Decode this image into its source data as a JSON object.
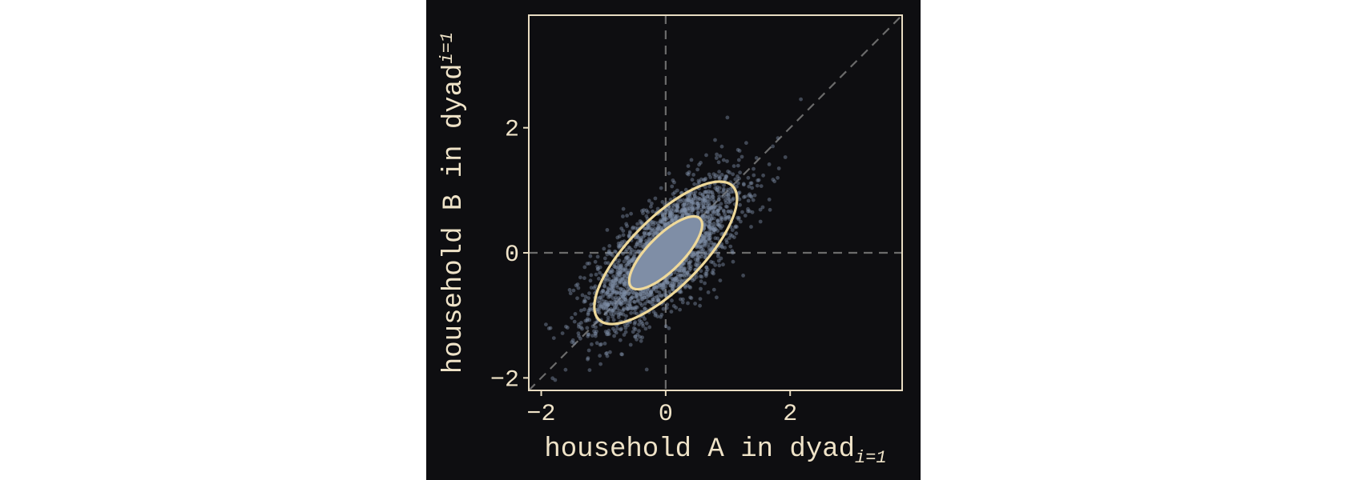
{
  "chart_data": {
    "type": "scatter",
    "title": "",
    "xlabel": "household A in dyad",
    "ylabel": "household B in dyad",
    "label_subscript": "i=1",
    "xlim": [
      -2.2,
      3.8
    ],
    "ylim": [
      -2.2,
      3.8
    ],
    "xticks": [
      -2,
      0,
      2
    ],
    "yticks": [
      -2,
      0,
      2
    ],
    "xtick_labels": [
      "−2",
      "0",
      "2"
    ],
    "ytick_labels": [
      "−2",
      "0",
      "2"
    ],
    "grid": false,
    "reference_lines": [
      "x = 0",
      "y = 0",
      "y = x"
    ],
    "point_count": 2500,
    "point_distribution": {
      "mean": [
        0,
        0
      ],
      "std": [
        0.6,
        0.6
      ],
      "correlation": 0.7
    },
    "contours": [
      {
        "name": "inner",
        "center": [
          0,
          0
        ],
        "major_axis_angle_deg": 45,
        "semi_axes": [
          0.78,
          0.28
        ]
      },
      {
        "name": "outer",
        "center": [
          0,
          0
        ],
        "major_axis_angle_deg": 45,
        "semi_axes": [
          1.52,
          0.56
        ]
      }
    ],
    "colors": {
      "background": "#0e0e11",
      "points": "#7f8ea6",
      "contour": "#efd99a",
      "axes": "#e8dcc2",
      "text": "#efe3c8",
      "reference_lines": "#6b6b6b"
    }
  }
}
